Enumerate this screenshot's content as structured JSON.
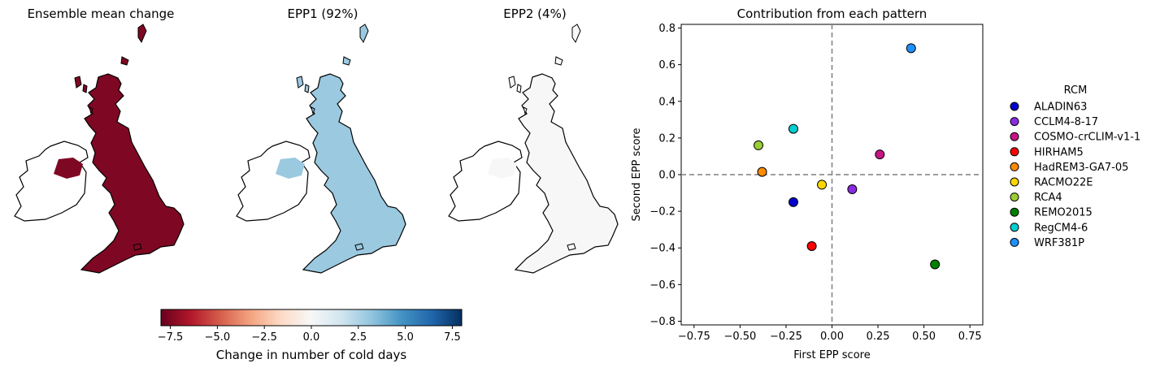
{
  "maps": [
    {
      "title": "Ensemble mean change",
      "fill_value": -7.5
    },
    {
      "title": "EPP1 (92%)",
      "fill_value": 3.0
    },
    {
      "title": "EPP2 (4%)",
      "fill_value": 0.0
    }
  ],
  "colorbar": {
    "label": "Change in number of cold days",
    "ticks": [
      "−7.5",
      "−5.0",
      "−2.5",
      "0.0",
      "2.5",
      "5.0",
      "7.5"
    ],
    "tick_values": [
      -7.5,
      -5.0,
      -2.5,
      0.0,
      2.5,
      5.0,
      7.5
    ],
    "range": [
      -8,
      8
    ],
    "colors": [
      "#67001f",
      "#b2182b",
      "#d6604d",
      "#f4a582",
      "#fddbc7",
      "#f7f7f7",
      "#d1e5f0",
      "#92c5de",
      "#4393c3",
      "#2166ac",
      "#053061"
    ]
  },
  "chart_data": {
    "type": "scatter",
    "title": "Contribution from each pattern",
    "xlabel": "First EPP score",
    "ylabel": "Second EPP score",
    "xlim": [
      -0.82,
      0.82
    ],
    "ylim": [
      -0.82,
      0.82
    ],
    "xticks": [
      -0.75,
      -0.5,
      -0.25,
      0.0,
      0.25,
      0.5,
      0.75
    ],
    "xtick_labels": [
      "−0.75",
      "−0.50",
      "−0.25",
      "0.00",
      "0.25",
      "0.50",
      "0.75"
    ],
    "yticks": [
      -0.8,
      -0.6,
      -0.4,
      -0.2,
      0.0,
      0.2,
      0.4,
      0.6,
      0.8
    ],
    "ytick_labels": [
      "−0.8",
      "−0.6",
      "−0.4",
      "−0.2",
      "0.0",
      "0.2",
      "0.4",
      "0.6",
      "0.8"
    ],
    "legend_title": "RCM",
    "legend_position": "right outside",
    "grid": false,
    "reference_lines": [
      0,
      0
    ],
    "series": [
      {
        "name": "ALADIN63",
        "color": "#0000cd",
        "x": -0.21,
        "y": -0.15
      },
      {
        "name": "CCLM4-8-17",
        "color": "#8a2be2",
        "x": 0.11,
        "y": -0.08
      },
      {
        "name": "COSMO-crCLIM-v1-1",
        "color": "#c71585",
        "x": 0.26,
        "y": 0.11
      },
      {
        "name": "HIRHAM5",
        "color": "#ff0000",
        "x": -0.11,
        "y": -0.39
      },
      {
        "name": "HadREM3-GA7-05",
        "color": "#ff8c00",
        "x": -0.38,
        "y": 0.015
      },
      {
        "name": "RACMO22E",
        "color": "#ffd700",
        "x": -0.055,
        "y": -0.055
      },
      {
        "name": "RCA4",
        "color": "#9acd32",
        "x": -0.4,
        "y": 0.16
      },
      {
        "name": "REMO2015",
        "color": "#008000",
        "x": 0.56,
        "y": -0.49
      },
      {
        "name": "RegCM4-6",
        "color": "#00ced1",
        "x": -0.21,
        "y": 0.25
      },
      {
        "name": "WRF381P",
        "color": "#1e90ff",
        "x": 0.43,
        "y": 0.69
      }
    ]
  }
}
